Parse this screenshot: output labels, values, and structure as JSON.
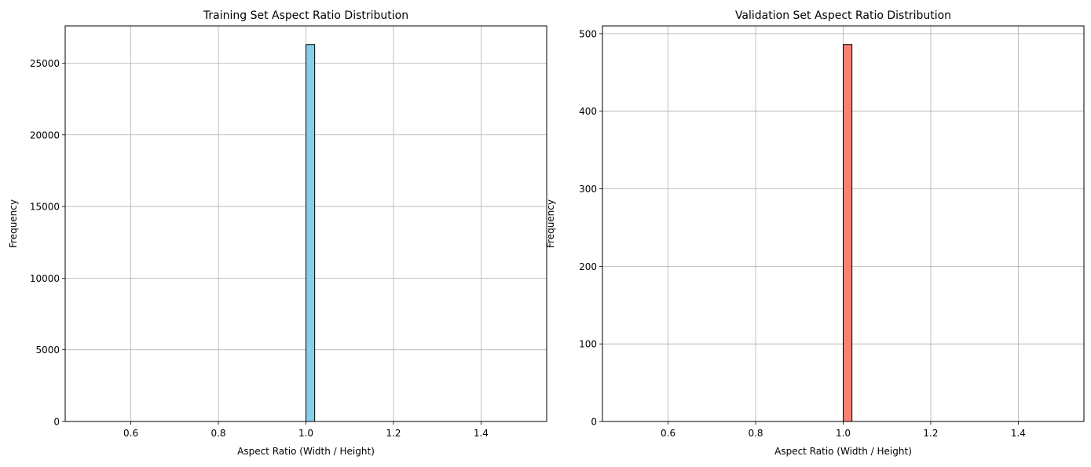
{
  "chart_data": [
    {
      "type": "bar",
      "title": "Training Set Aspect Ratio Distribution",
      "xlabel": "Aspect Ratio (Width / Height)",
      "ylabel": "Frequency",
      "xlim": [
        0.45,
        1.55
      ],
      "ylim": [
        0,
        27600
      ],
      "xticks": [
        0.6,
        0.8,
        1.0,
        1.2,
        1.4
      ],
      "xtick_labels": [
        "0.6",
        "0.8",
        "1.0",
        "1.2",
        "1.4"
      ],
      "yticks": [
        0,
        5000,
        10000,
        15000,
        20000,
        25000
      ],
      "ytick_labels": [
        "0",
        "5000",
        "10000",
        "15000",
        "20000",
        "25000"
      ],
      "grid": true,
      "bins": 50,
      "bin_range": [
        0.5,
        1.5
      ],
      "bars": [
        {
          "x0": 1.0,
          "x1": 1.02,
          "value": 26300
        }
      ],
      "color": "#87ceeb",
      "edge_color": "#000000"
    },
    {
      "type": "bar",
      "title": "Validation Set Aspect Ratio Distribution",
      "xlabel": "Aspect Ratio (Width / Height)",
      "ylabel": "Frequency",
      "xlim": [
        0.45,
        1.55
      ],
      "ylim": [
        0,
        510
      ],
      "xticks": [
        0.6,
        0.8,
        1.0,
        1.2,
        1.4
      ],
      "xtick_labels": [
        "0.6",
        "0.8",
        "1.0",
        "1.2",
        "1.4"
      ],
      "yticks": [
        0,
        100,
        200,
        300,
        400,
        500
      ],
      "ytick_labels": [
        "0",
        "100",
        "200",
        "300",
        "400",
        "500"
      ],
      "grid": true,
      "bins": 50,
      "bin_range": [
        0.5,
        1.5
      ],
      "bars": [
        {
          "x0": 1.0,
          "x1": 1.02,
          "value": 486
        }
      ],
      "color": "#fa8072",
      "edge_color": "#000000"
    }
  ]
}
